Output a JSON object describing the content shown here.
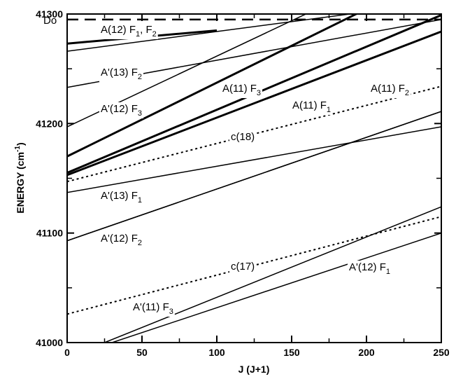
{
  "chart_data": {
    "type": "line",
    "xlabel": "J (J+1)",
    "ylabel": "ENERGY (cm",
    "ylabel_sup": "-1",
    "ylabel_end": ")",
    "xlim": [
      0,
      250
    ],
    "ylim": [
      41000,
      41300
    ],
    "x_ticks": [
      0,
      50,
      100,
      150,
      200,
      250
    ],
    "y_ticks": [
      41000,
      41100,
      41200,
      41300
    ],
    "x_tick_labels": [
      "0",
      "50",
      "100",
      "150",
      "200",
      "250"
    ],
    "y_tick_labels": [
      "41000",
      "41100",
      "41200",
      "41300"
    ],
    "dissociation_limit": {
      "label": "Do",
      "y": 41295
    },
    "series": [
      {
        "label_main": "A(12) F",
        "label_sub": "1",
        "label_tail": ", F",
        "label_sub2": "2",
        "style": "thick",
        "points": [
          [
            0,
            41273
          ],
          [
            100,
            41285
          ]
        ]
      },
      {
        "label_main": "A'(13) F",
        "label_sub": "2",
        "style": "thin",
        "points": [
          [
            0,
            41266
          ],
          [
            200,
            41302
          ]
        ]
      },
      {
        "style": "thin",
        "points": [
          [
            0,
            41233
          ],
          [
            250,
            41295
          ]
        ]
      },
      {
        "label_main": "A'(12) F",
        "label_sub": "3",
        "style": "thin",
        "points": [
          [
            0,
            41197
          ],
          [
            175,
            41310
          ]
        ]
      },
      {
        "label_main": "A(11) F",
        "label_sub": "3",
        "style": "thick",
        "points": [
          [
            0,
            41170
          ],
          [
            205,
            41308
          ]
        ]
      },
      {
        "label_main": "A(11) F",
        "label_sub": "2",
        "style": "thick",
        "points": [
          [
            0,
            41155
          ],
          [
            250,
            41299
          ]
        ]
      },
      {
        "label_main": "A(11) F",
        "label_sub": "1",
        "style": "thick",
        "points": [
          [
            0,
            41153
          ],
          [
            250,
            41284
          ]
        ]
      },
      {
        "label_main": "c(18)",
        "style": "dotted",
        "points": [
          [
            0,
            41147
          ],
          [
            250,
            41234
          ]
        ]
      },
      {
        "label_main": "A'(13) F",
        "label_sub": "1",
        "style": "thin",
        "points": [
          [
            0,
            41137
          ],
          [
            250,
            41197
          ]
        ]
      },
      {
        "style": "thin",
        "points": [
          [
            0,
            41093
          ],
          [
            250,
            41211
          ]
        ]
      },
      {
        "label_main": "A'(12) F",
        "label_sub": "2",
        "style": "thin",
        "points": [
          [
            0,
            41093
          ],
          [
            250,
            41211
          ]
        ]
      },
      {
        "label_main": "c(17)",
        "style": "dotted",
        "points": [
          [
            0,
            41026
          ],
          [
            250,
            41115
          ]
        ]
      },
      {
        "label_main": "A'(11) F",
        "label_sub": "3",
        "style": "thin",
        "points": [
          [
            25,
            41000
          ],
          [
            250,
            41124
          ]
        ]
      },
      {
        "label_main": "A'(12) F",
        "label_sub": "1",
        "style": "thin",
        "points": [
          [
            30,
            41000
          ],
          [
            250,
            41100
          ]
        ]
      }
    ]
  }
}
